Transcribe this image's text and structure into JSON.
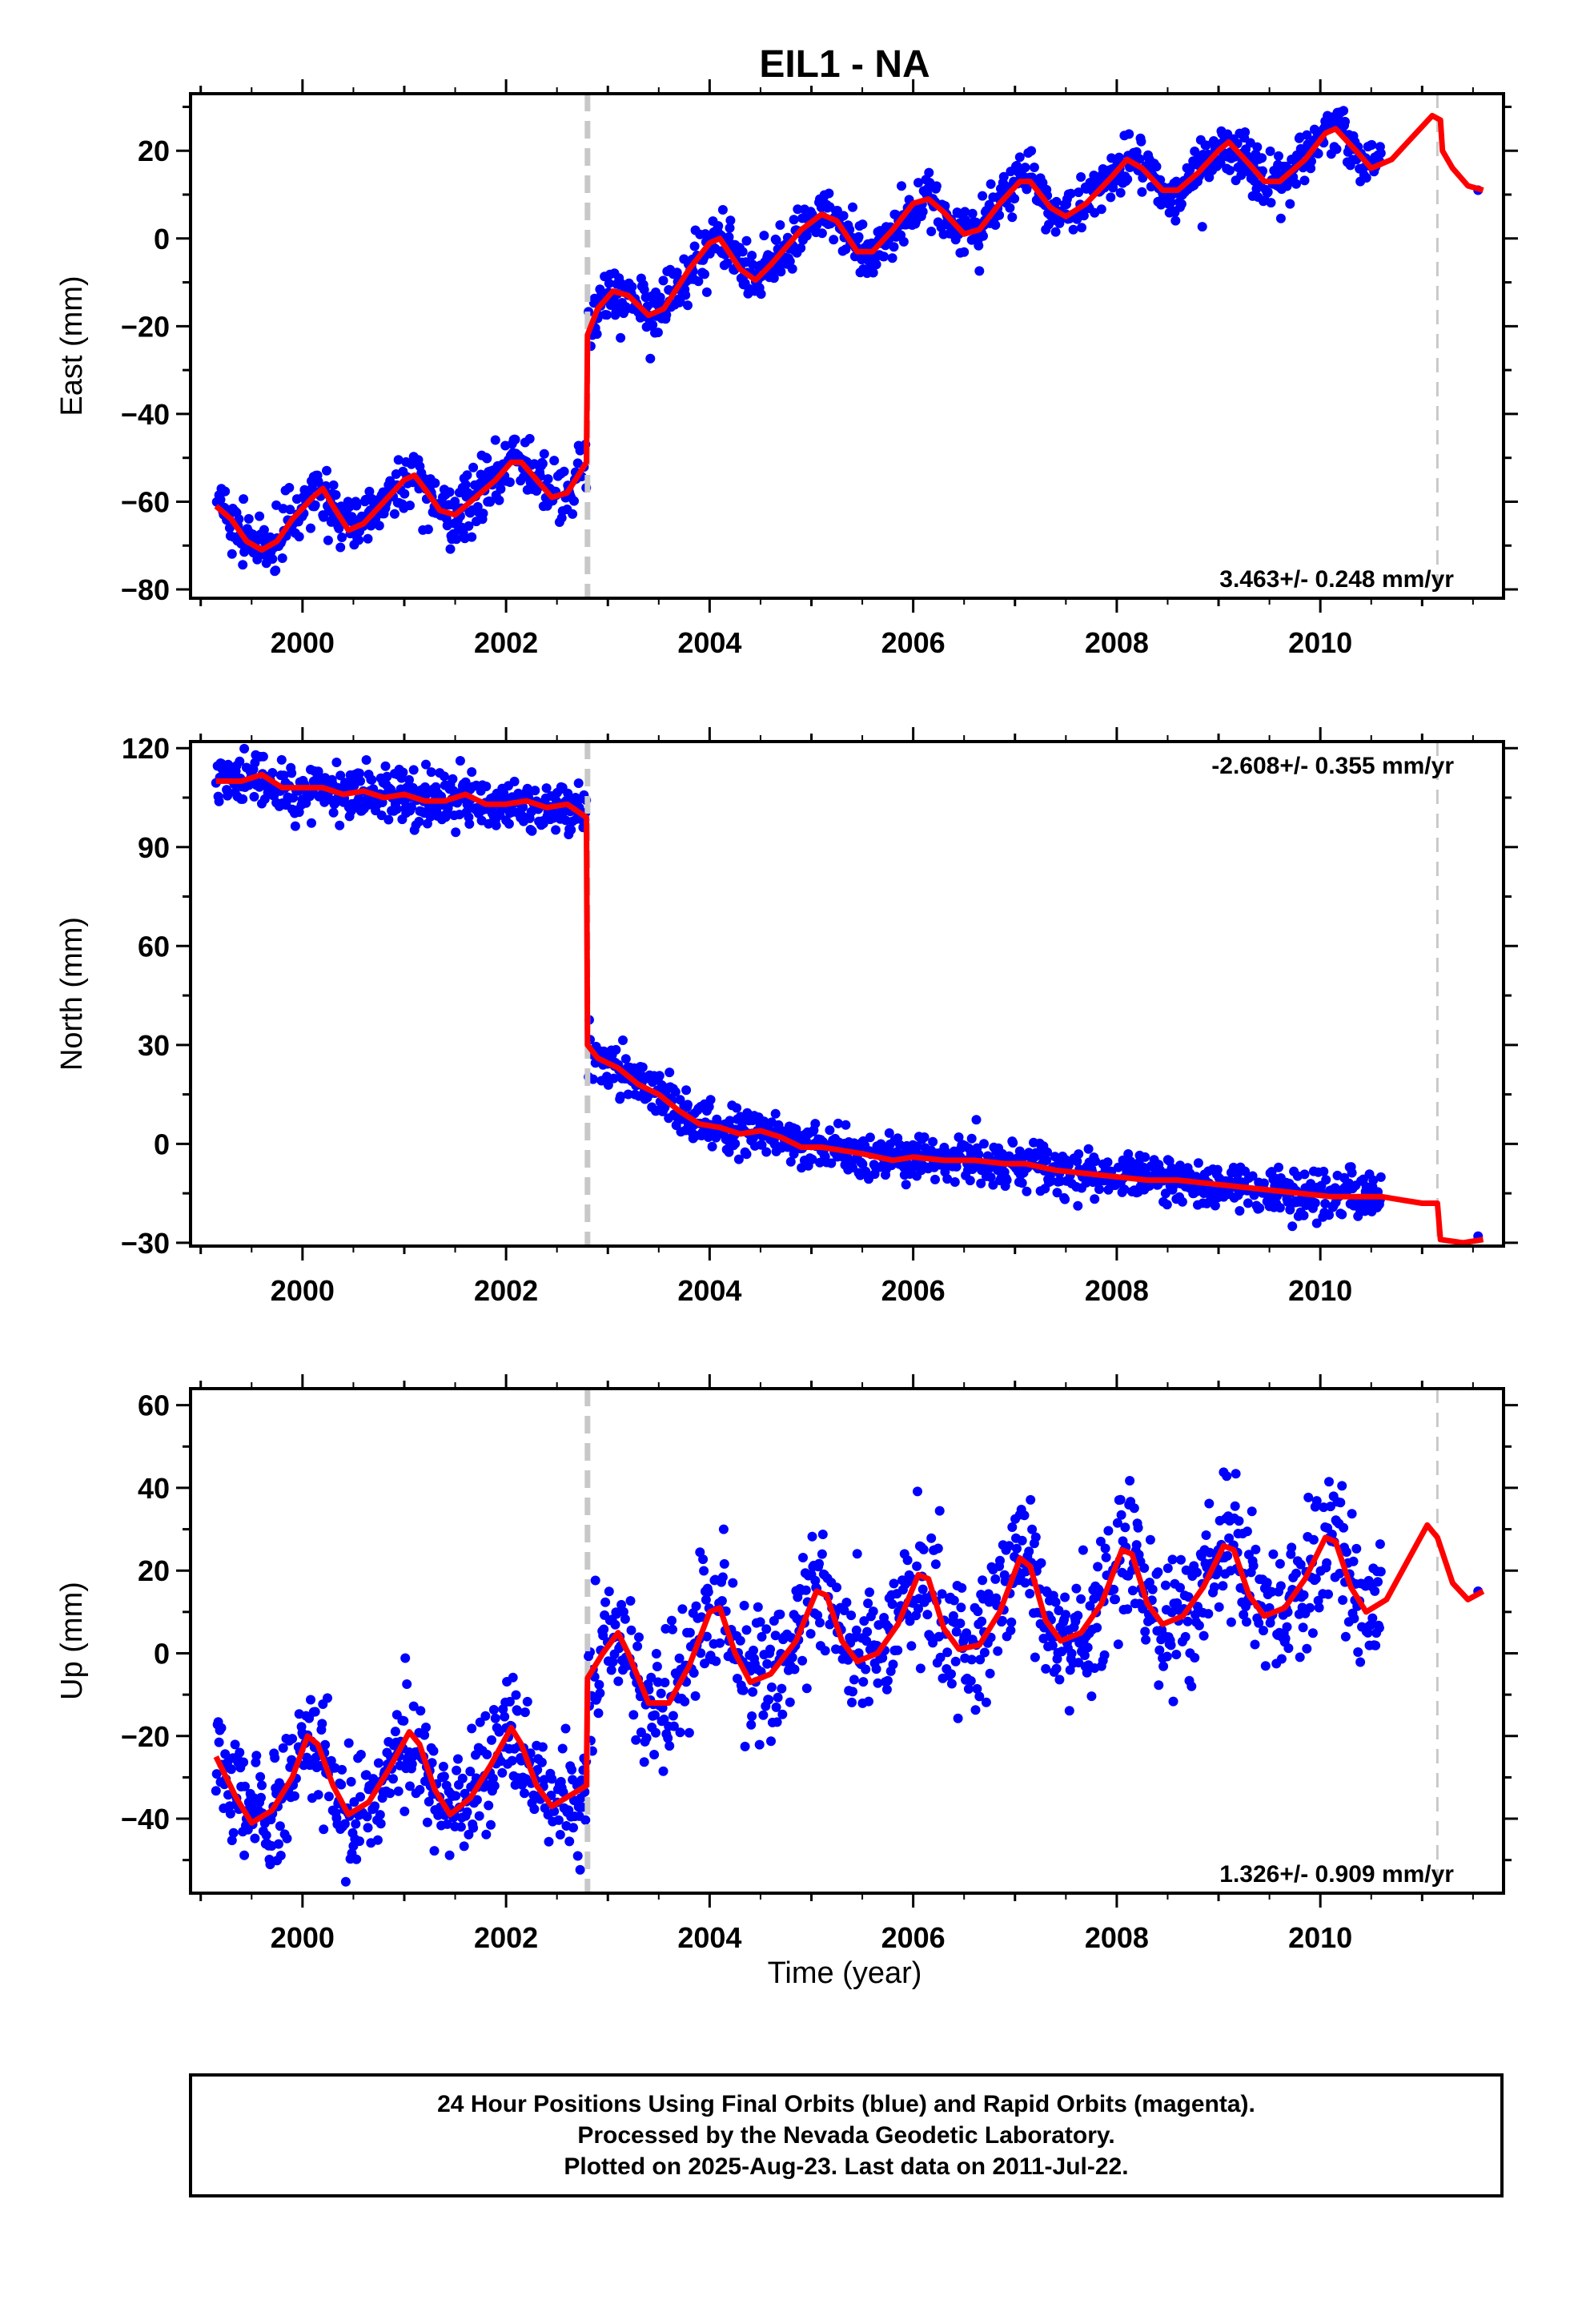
{
  "colors": {
    "final_orbits": "#0000ff",
    "model": "#ff0000",
    "offset_line": "#c8c8c8",
    "frame": "#000000"
  },
  "footer": {
    "line1": "24 Hour Positions Using Final Orbits (blue) and Rapid Orbits (magenta).",
    "line2": "Processed by the Nevada Geodetic Laboratory.",
    "line3": "Plotted on 2025-Aug-23. Last data on 2011-Jul-22."
  },
  "chart_data": [
    {
      "type": "scatter",
      "title": "EIL1 - NA",
      "ylabel": "East (mm)",
      "xlabel": "",
      "xlim": [
        1998.9,
        2011.8
      ],
      "ylim": [
        -82,
        33
      ],
      "xticks": [
        2000,
        2002,
        2004,
        2006,
        2008,
        2010
      ],
      "yticks": [
        -80,
        -60,
        -40,
        -20,
        0,
        20
      ],
      "rate": "3.463+/- 0.248 mm/yr",
      "rate_position": "bottom-right",
      "grid": false,
      "offsets": [
        {
          "x": 2002.8,
          "style": "thick"
        },
        {
          "x": 2011.15,
          "style": "thin"
        }
      ],
      "model": [
        [
          1999.15,
          -61
        ],
        [
          1999.3,
          -64
        ],
        [
          1999.45,
          -69
        ],
        [
          1999.6,
          -71
        ],
        [
          1999.75,
          -69
        ],
        [
          1999.9,
          -64
        ],
        [
          2000.1,
          -59
        ],
        [
          2000.2,
          -57
        ],
        [
          2000.3,
          -61
        ],
        [
          2000.45,
          -66.5
        ],
        [
          2000.6,
          -65
        ],
        [
          2000.8,
          -60
        ],
        [
          2001.0,
          -55
        ],
        [
          2001.1,
          -54
        ],
        [
          2001.2,
          -57
        ],
        [
          2001.35,
          -62
        ],
        [
          2001.5,
          -63
        ],
        [
          2001.7,
          -59
        ],
        [
          2001.9,
          -55
        ],
        [
          2002.05,
          -51
        ],
        [
          2002.15,
          -51
        ],
        [
          2002.3,
          -55
        ],
        [
          2002.45,
          -59
        ],
        [
          2002.6,
          -58
        ],
        [
          2002.79,
          -51
        ],
        [
          2002.8,
          -22
        ],
        [
          2002.9,
          -16
        ],
        [
          2003.05,
          -12
        ],
        [
          2003.2,
          -13
        ],
        [
          2003.4,
          -17.5
        ],
        [
          2003.55,
          -16
        ],
        [
          2003.8,
          -7
        ],
        [
          2004.0,
          -1
        ],
        [
          2004.1,
          0
        ],
        [
          2004.3,
          -7
        ],
        [
          2004.45,
          -9.5
        ],
        [
          2004.6,
          -6
        ],
        [
          2004.9,
          2
        ],
        [
          2005.1,
          5.5
        ],
        [
          2005.25,
          4
        ],
        [
          2005.45,
          -3
        ],
        [
          2005.6,
          -3
        ],
        [
          2005.8,
          2
        ],
        [
          2006.0,
          8
        ],
        [
          2006.15,
          9
        ],
        [
          2006.3,
          6
        ],
        [
          2006.5,
          1
        ],
        [
          2006.65,
          2
        ],
        [
          2006.85,
          8
        ],
        [
          2007.05,
          13
        ],
        [
          2007.15,
          13
        ],
        [
          2007.35,
          7
        ],
        [
          2007.5,
          5
        ],
        [
          2007.7,
          8
        ],
        [
          2007.95,
          14
        ],
        [
          2008.1,
          18
        ],
        [
          2008.25,
          16
        ],
        [
          2008.45,
          11
        ],
        [
          2008.6,
          11
        ],
        [
          2008.8,
          15
        ],
        [
          2009.0,
          20
        ],
        [
          2009.1,
          22
        ],
        [
          2009.3,
          17
        ],
        [
          2009.45,
          13
        ],
        [
          2009.6,
          13
        ],
        [
          2009.85,
          18
        ],
        [
          2010.05,
          24
        ],
        [
          2010.15,
          25
        ],
        [
          2010.35,
          20
        ],
        [
          2010.5,
          16
        ],
        [
          2010.7,
          18
        ],
        [
          2010.9,
          23
        ],
        [
          2011.1,
          28
        ],
        [
          2011.18,
          27
        ],
        [
          2011.2,
          20
        ],
        [
          2011.3,
          16
        ],
        [
          2011.45,
          12
        ],
        [
          2011.6,
          11
        ]
      ],
      "data_bands": [
        {
          "x0": 1999.15,
          "x1": 2002.79,
          "spread": 3.5
        },
        {
          "x0": 2002.81,
          "x1": 2010.6,
          "spread": 3.0
        }
      ],
      "last_point": [
        2011.55,
        11
      ]
    },
    {
      "type": "scatter",
      "title": "",
      "ylabel": "North (mm)",
      "xlabel": "",
      "xlim": [
        1998.9,
        2011.8
      ],
      "ylim": [
        -31,
        122
      ],
      "xticks": [
        2000,
        2002,
        2004,
        2006,
        2008,
        2010
      ],
      "yticks": [
        -30,
        0,
        30,
        60,
        90,
        120
      ],
      "rate": "-2.608+/- 0.355 mm/yr",
      "rate_position": "top-right",
      "grid": false,
      "offsets": [
        {
          "x": 2002.8,
          "style": "thick"
        },
        {
          "x": 2011.15,
          "style": "thin"
        }
      ],
      "model": [
        [
          1999.15,
          110
        ],
        [
          1999.4,
          110
        ],
        [
          1999.6,
          112
        ],
        [
          1999.8,
          108
        ],
        [
          2000.0,
          108
        ],
        [
          2000.2,
          108
        ],
        [
          2000.4,
          106
        ],
        [
          2000.6,
          107
        ],
        [
          2000.8,
          105
        ],
        [
          2001.0,
          106
        ],
        [
          2001.2,
          104
        ],
        [
          2001.4,
          104
        ],
        [
          2001.6,
          106
        ],
        [
          2001.8,
          103
        ],
        [
          2002.0,
          103
        ],
        [
          2002.2,
          104
        ],
        [
          2002.4,
          102
        ],
        [
          2002.6,
          103
        ],
        [
          2002.79,
          99
        ],
        [
          2002.8,
          30
        ],
        [
          2002.9,
          26
        ],
        [
          2003.1,
          23
        ],
        [
          2003.3,
          18
        ],
        [
          2003.5,
          15
        ],
        [
          2003.7,
          10
        ],
        [
          2003.9,
          6
        ],
        [
          2004.1,
          5
        ],
        [
          2004.3,
          3
        ],
        [
          2004.5,
          4
        ],
        [
          2004.7,
          2
        ],
        [
          2004.9,
          -1
        ],
        [
          2005.1,
          -1
        ],
        [
          2005.3,
          -2
        ],
        [
          2005.5,
          -3
        ],
        [
          2005.8,
          -5
        ],
        [
          2006.0,
          -4
        ],
        [
          2006.3,
          -5
        ],
        [
          2006.6,
          -5
        ],
        [
          2006.9,
          -6
        ],
        [
          2007.1,
          -6
        ],
        [
          2007.4,
          -8
        ],
        [
          2007.7,
          -9
        ],
        [
          2008.0,
          -10
        ],
        [
          2008.3,
          -11
        ],
        [
          2008.6,
          -11
        ],
        [
          2008.9,
          -12
        ],
        [
          2009.2,
          -13
        ],
        [
          2009.5,
          -14
        ],
        [
          2009.8,
          -15
        ],
        [
          2010.1,
          -16
        ],
        [
          2010.4,
          -16
        ],
        [
          2010.6,
          -16
        ],
        [
          2010.8,
          -17
        ],
        [
          2011.0,
          -18
        ],
        [
          2011.15,
          -18
        ],
        [
          2011.18,
          -29
        ],
        [
          2011.4,
          -30
        ],
        [
          2011.6,
          -29
        ]
      ],
      "data_bands": [
        {
          "x0": 1999.15,
          "x1": 2002.79,
          "spread": 4.0
        },
        {
          "x0": 2002.81,
          "x1": 2010.6,
          "spread": 3.5
        }
      ],
      "last_point": [
        2011.55,
        -28
      ]
    },
    {
      "type": "scatter",
      "title": "",
      "ylabel": "Up (mm)",
      "xlabel": "Time (year)",
      "xlim": [
        1998.9,
        2011.8
      ],
      "ylim": [
        -58,
        64
      ],
      "xticks": [
        2000,
        2002,
        2004,
        2006,
        2008,
        2010
      ],
      "yticks": [
        -40,
        -20,
        0,
        20,
        40,
        60
      ],
      "rate": "1.326+/- 0.909 mm/yr",
      "rate_position": "bottom-right",
      "grid": false,
      "offsets": [
        {
          "x": 2002.8,
          "style": "thick"
        },
        {
          "x": 2011.15,
          "style": "thin"
        }
      ],
      "model": [
        [
          1999.15,
          -25
        ],
        [
          1999.35,
          -35
        ],
        [
          1999.5,
          -41
        ],
        [
          1999.7,
          -38
        ],
        [
          1999.9,
          -30
        ],
        [
          2000.05,
          -20
        ],
        [
          2000.15,
          -22
        ],
        [
          2000.3,
          -32
        ],
        [
          2000.45,
          -39
        ],
        [
          2000.65,
          -36
        ],
        [
          2000.85,
          -28
        ],
        [
          2001.05,
          -19
        ],
        [
          2001.15,
          -22
        ],
        [
          2001.3,
          -33
        ],
        [
          2001.45,
          -39
        ],
        [
          2001.65,
          -35
        ],
        [
          2001.85,
          -27
        ],
        [
          2002.05,
          -18
        ],
        [
          2002.15,
          -22
        ],
        [
          2002.3,
          -32
        ],
        [
          2002.45,
          -37
        ],
        [
          2002.79,
          -32
        ],
        [
          2002.8,
          -6
        ],
        [
          2002.95,
          0
        ],
        [
          2003.1,
          5
        ],
        [
          2003.2,
          0
        ],
        [
          2003.4,
          -12
        ],
        [
          2003.6,
          -12
        ],
        [
          2003.8,
          -3
        ],
        [
          2004.0,
          10
        ],
        [
          2004.1,
          11
        ],
        [
          2004.25,
          0
        ],
        [
          2004.4,
          -7
        ],
        [
          2004.6,
          -5
        ],
        [
          2004.85,
          3
        ],
        [
          2005.05,
          15
        ],
        [
          2005.15,
          14
        ],
        [
          2005.3,
          3
        ],
        [
          2005.45,
          -2
        ],
        [
          2005.65,
          0
        ],
        [
          2005.85,
          7
        ],
        [
          2006.05,
          19
        ],
        [
          2006.15,
          18
        ],
        [
          2006.3,
          6
        ],
        [
          2006.45,
          1
        ],
        [
          2006.65,
          2
        ],
        [
          2006.85,
          10
        ],
        [
          2007.05,
          23
        ],
        [
          2007.15,
          21
        ],
        [
          2007.3,
          8
        ],
        [
          2007.45,
          3
        ],
        [
          2007.65,
          5
        ],
        [
          2007.85,
          12
        ],
        [
          2008.05,
          25
        ],
        [
          2008.15,
          24
        ],
        [
          2008.3,
          12
        ],
        [
          2008.45,
          7
        ],
        [
          2008.65,
          9
        ],
        [
          2008.85,
          16
        ],
        [
          2009.05,
          26
        ],
        [
          2009.15,
          25
        ],
        [
          2009.3,
          14
        ],
        [
          2009.45,
          9
        ],
        [
          2009.65,
          11
        ],
        [
          2009.85,
          18
        ],
        [
          2010.05,
          28
        ],
        [
          2010.15,
          27
        ],
        [
          2010.3,
          16
        ],
        [
          2010.45,
          10
        ],
        [
          2010.65,
          13
        ],
        [
          2010.85,
          22
        ],
        [
          2011.05,
          31
        ],
        [
          2011.15,
          28
        ],
        [
          2011.3,
          17
        ],
        [
          2011.45,
          13
        ],
        [
          2011.6,
          15
        ]
      ],
      "data_bands": [
        {
          "x0": 1999.15,
          "x1": 2002.79,
          "spread": 7.0
        },
        {
          "x0": 2002.81,
          "x1": 2010.6,
          "spread": 8.0
        }
      ],
      "last_point": [
        2011.55,
        15
      ]
    }
  ]
}
